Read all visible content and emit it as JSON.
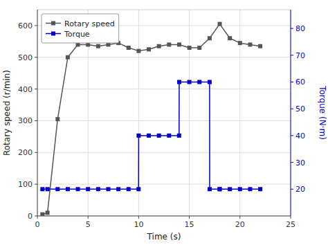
{
  "chart_data": {
    "type": "line",
    "xlabel": "Time (s)",
    "ylabel": "Rotary speed (r/min)",
    "y2label": "Torque (N·m)",
    "xlim": [
      0,
      25
    ],
    "xticks": [
      0,
      5,
      10,
      15,
      20,
      25
    ],
    "ylim": [
      0,
      650
    ],
    "yticks": [
      0,
      100,
      200,
      300,
      400,
      500,
      600
    ],
    "y2lim": [
      10,
      87
    ],
    "y2ticks": [
      20,
      30,
      40,
      50,
      60,
      70,
      80
    ],
    "grid": true,
    "legend": "upper left",
    "series": [
      {
        "name": "Rotary speed",
        "color": "#555555",
        "marker": "square",
        "x": [
          0.5,
          1,
          2,
          3,
          4,
          5,
          6,
          7,
          8,
          9,
          10,
          11,
          12,
          13,
          14,
          15,
          16,
          17,
          18,
          19,
          20,
          21,
          22
        ],
        "values": [
          5,
          10,
          305,
          500,
          540,
          540,
          535,
          540,
          545,
          530,
          520,
          525,
          535,
          540,
          540,
          530,
          530,
          560,
          605,
          560,
          545,
          540,
          535
        ]
      },
      {
        "name": "Torque",
        "color": "#0000cc",
        "marker": "square",
        "axis": "y2",
        "x": [
          0.5,
          1,
          2,
          3,
          4,
          5,
          6,
          7,
          8,
          9,
          9.99,
          10,
          11,
          12,
          13,
          13.99,
          14,
          15,
          16,
          17,
          17.01,
          17.99,
          18,
          19,
          20,
          21,
          22
        ],
        "values": [
          20,
          20,
          20,
          20,
          20,
          20,
          20,
          20,
          20,
          20,
          20,
          40,
          40,
          40,
          40,
          40,
          60,
          60,
          60,
          60,
          20,
          20,
          20,
          20,
          20,
          20,
          20
        ]
      }
    ]
  }
}
